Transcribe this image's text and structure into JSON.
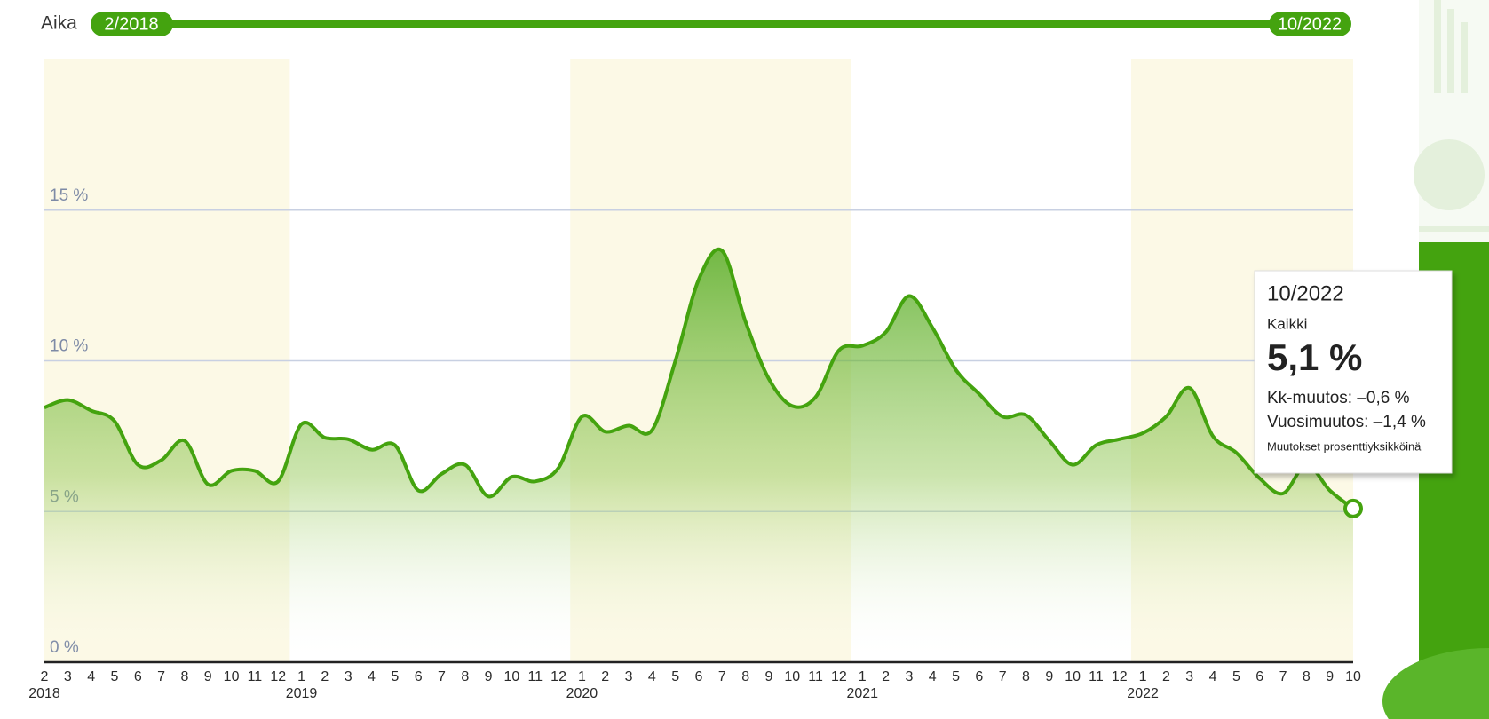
{
  "slider": {
    "label": "Aika",
    "range": [
      "2/2018",
      "10/2022"
    ]
  },
  "chart_data": {
    "type": "area",
    "years": [
      {
        "label": "2018",
        "months": [
          "2",
          "3",
          "4",
          "5",
          "6",
          "7",
          "8",
          "9",
          "10",
          "11",
          "12"
        ]
      },
      {
        "label": "2019",
        "months": [
          "1",
          "2",
          "3",
          "4",
          "5",
          "6",
          "7",
          "8",
          "9",
          "10",
          "11",
          "12"
        ]
      },
      {
        "label": "2020",
        "months": [
          "1",
          "2",
          "3",
          "4",
          "5",
          "6",
          "7",
          "8",
          "9",
          "10",
          "11",
          "12"
        ]
      },
      {
        "label": "2021",
        "months": [
          "1",
          "2",
          "3",
          "4",
          "5",
          "6",
          "7",
          "8",
          "9",
          "10",
          "11",
          "12"
        ]
      },
      {
        "label": "2022",
        "months": [
          "1",
          "2",
          "3",
          "4",
          "5",
          "6",
          "7",
          "8",
          "9",
          "10"
        ]
      }
    ],
    "series": [
      {
        "name": "Kaikki",
        "color": "#44a30f",
        "values": [
          8.45,
          8.7,
          8.35,
          8.0,
          6.55,
          6.7,
          7.35,
          5.9,
          6.35,
          6.35,
          6.0,
          7.9,
          7.45,
          7.4,
          7.05,
          7.2,
          5.7,
          6.25,
          6.55,
          5.5,
          6.15,
          6.0,
          6.45,
          8.15,
          7.65,
          7.85,
          7.7,
          10.0,
          12.7,
          13.65,
          11.3,
          9.4,
          8.5,
          8.8,
          10.35,
          10.5,
          10.95,
          12.15,
          11.1,
          9.7,
          8.9,
          8.15,
          8.2,
          7.35,
          6.55,
          7.2,
          7.4,
          7.6,
          8.15,
          9.1,
          7.5,
          6.95,
          6.1,
          5.6,
          6.55,
          5.7,
          5.1
        ]
      }
    ],
    "ylim": [
      0,
      20
    ],
    "yticks": [
      {
        "value": 0,
        "label": "0 %"
      },
      {
        "value": 5,
        "label": "5 %"
      },
      {
        "value": 10,
        "label": "10 %"
      },
      {
        "value": 15,
        "label": "15 %"
      }
    ],
    "grid": true,
    "tooltip": {
      "value_label": "5,1 %",
      "month_change": "Kk-muutos: –0,6 %",
      "year_change": "Vuosimuutos: –1,4 %",
      "note": "Muutokset prosenttiyksikköinä"
    }
  }
}
